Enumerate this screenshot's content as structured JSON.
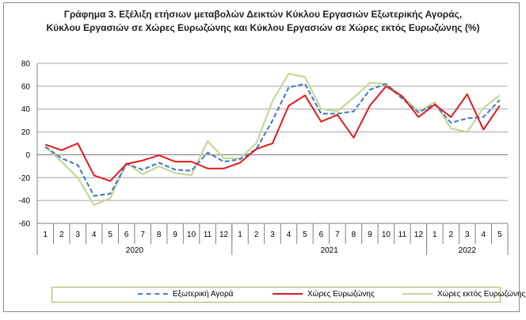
{
  "chart_data": {
    "type": "line",
    "title": [
      "Γράφημα 3. Εξέλιξη  ετήσιων μεταβολών Δεικτών Κύκλου Εργασιών Εξωτερικής Αγοράς,",
      "Κύκλου Εργασιών σε Χώρες Ευρωζώνης και Κύκλου Εργασιών σε Χώρες εκτός Ευρωζώνης (%)"
    ],
    "ylim": [
      -60,
      80
    ],
    "yticks": [
      -60,
      -40,
      -20,
      0,
      20,
      40,
      60,
      80
    ],
    "grid": true,
    "legend_position": "bottom",
    "months": [
      "1",
      "2",
      "3",
      "4",
      "5",
      "6",
      "7",
      "8",
      "9",
      "10",
      "11",
      "12",
      "1",
      "2",
      "3",
      "4",
      "5",
      "6",
      "7",
      "8",
      "9",
      "10",
      "11",
      "12",
      "1",
      "2",
      "3",
      "4",
      "5"
    ],
    "years": [
      {
        "label": "2020",
        "count": 12
      },
      {
        "label": "2021",
        "count": 12
      },
      {
        "label": "2022",
        "count": 5
      }
    ],
    "series": [
      {
        "name": "Εξωτερική Αγορά",
        "color": "#4f81bd",
        "style": "dashed",
        "values": [
          7,
          -3,
          -9,
          -36,
          -34,
          -8,
          -13,
          -7,
          -13,
          -14,
          2,
          -6,
          -4,
          5,
          30,
          59,
          62,
          36,
          36,
          38,
          57,
          62,
          49,
          37,
          44,
          28,
          32,
          33,
          48
        ]
      },
      {
        "name": "Χώρες Ευρωζώνης",
        "color": "#e31a1c",
        "style": "solid",
        "values": [
          9,
          4,
          10,
          -18,
          -23,
          -8,
          -5,
          -0.5,
          -6,
          -6,
          -12,
          -12,
          -7,
          5,
          10,
          43,
          52,
          29,
          35,
          15,
          43,
          60,
          51,
          33,
          44,
          33,
          53,
          22,
          43
        ]
      },
      {
        "name": "Χώρες εκτός Ευρωζώνης",
        "color": "#c4d79b",
        "style": "solid",
        "values": [
          7,
          -6,
          -20,
          -44,
          -38,
          -7,
          -17,
          -10,
          -16,
          -18,
          12,
          -3,
          -3,
          10,
          47,
          71,
          68,
          40,
          38,
          50,
          63,
          62,
          51,
          38,
          46,
          23,
          20,
          41,
          52
        ]
      }
    ]
  }
}
